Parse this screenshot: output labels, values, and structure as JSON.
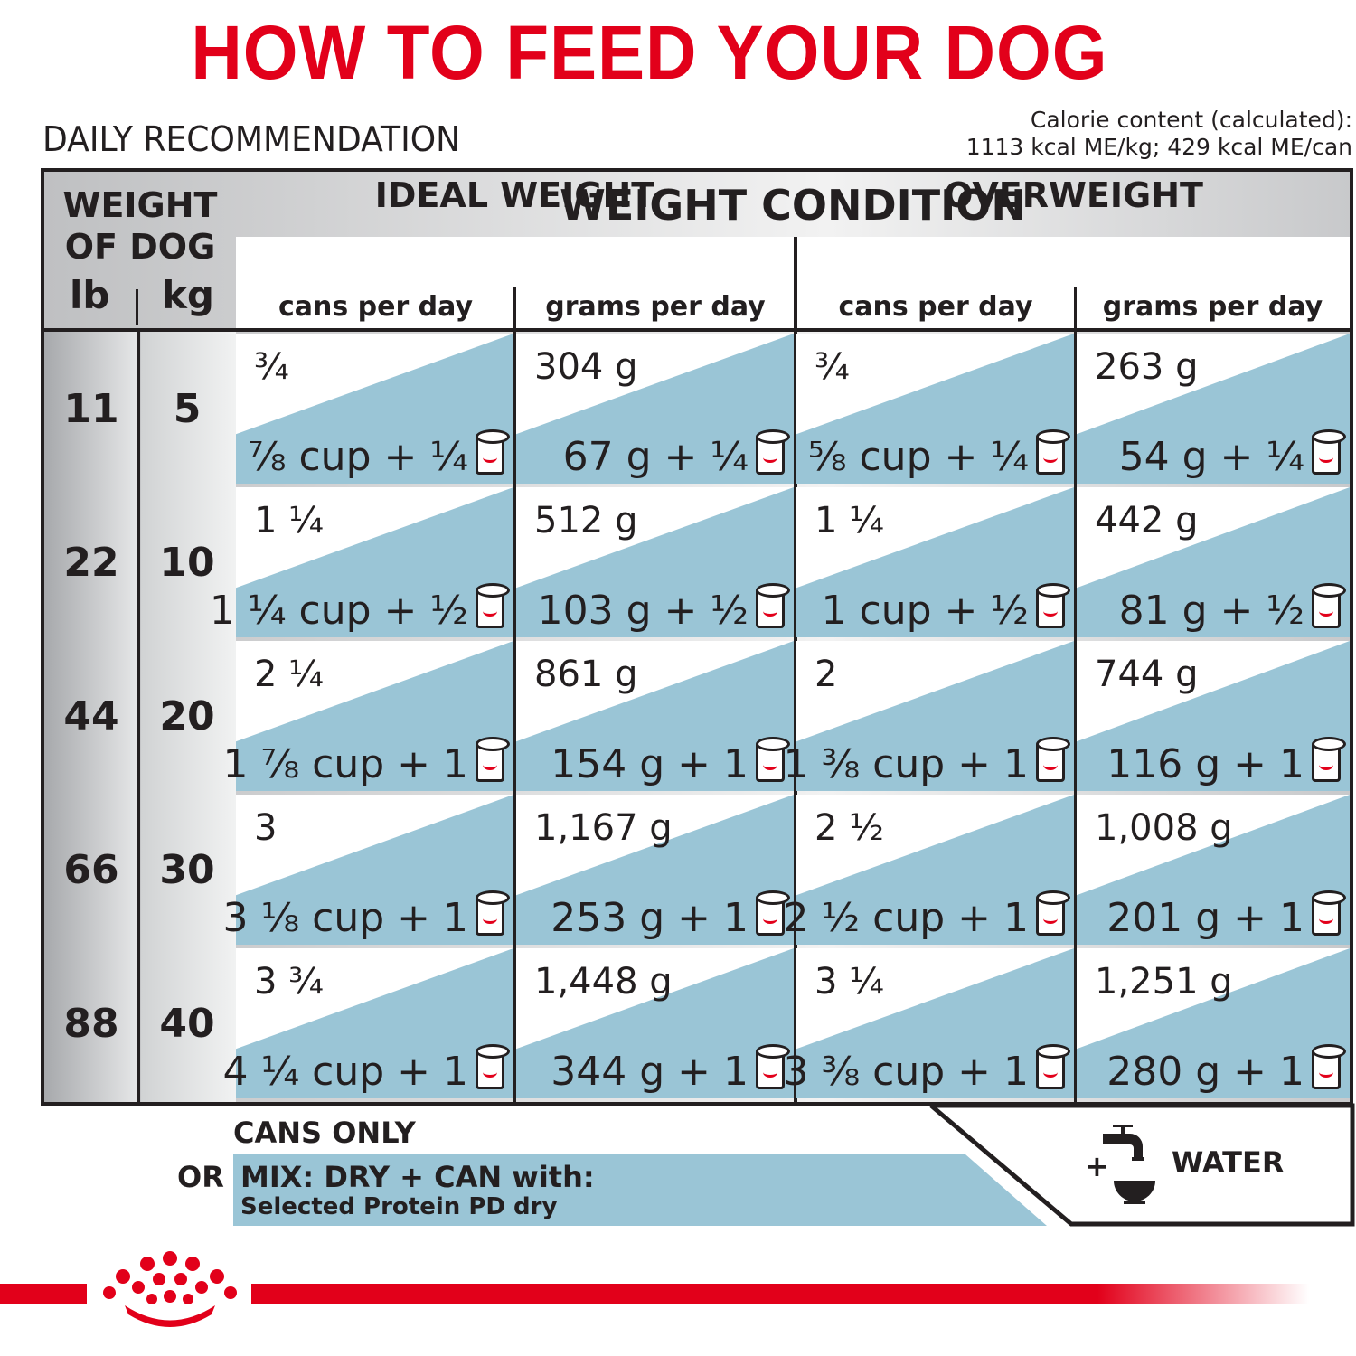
{
  "title": "HOW TO FEED YOUR DOG",
  "daily": "DAILY RECOMMENDATION",
  "calorie": {
    "line1": "Calorie content (calculated):",
    "line2": "1113 kcal ME/kg; 429 kcal ME/can"
  },
  "table": {
    "weight_header": "WEIGHT OF DOG",
    "lb": "lb",
    "kg": "kg",
    "condition_header": "WEIGHT CONDITION",
    "groups": [
      {
        "label": "IDEAL WEIGHT"
      },
      {
        "label": "OVERWEIGHT"
      }
    ],
    "columns": [
      "cans per day",
      "grams per day",
      "cans per day",
      "grams per day"
    ],
    "rows": [
      {
        "lb": "11",
        "kg": "5",
        "cells": [
          {
            "top": "¾",
            "bottom": "⅞ cup + ¼"
          },
          {
            "top": "304 g",
            "bottom": "67 g + ¼"
          },
          {
            "top": "¾",
            "bottom": "⅝ cup + ¼"
          },
          {
            "top": "263 g",
            "bottom": "54 g + ¼"
          }
        ]
      },
      {
        "lb": "22",
        "kg": "10",
        "cells": [
          {
            "top": "1 ¼",
            "bottom": "1 ¼ cup + ½"
          },
          {
            "top": "512 g",
            "bottom": "103 g + ½"
          },
          {
            "top": "1 ¼",
            "bottom": "1 cup + ½"
          },
          {
            "top": "442 g",
            "bottom": "81 g + ½"
          }
        ]
      },
      {
        "lb": "44",
        "kg": "20",
        "cells": [
          {
            "top": "2 ¼",
            "bottom": "1 ⅞ cup + 1"
          },
          {
            "top": "861 g",
            "bottom": "154 g + 1"
          },
          {
            "top": "2",
            "bottom": "1 ⅜ cup + 1"
          },
          {
            "top": "744 g",
            "bottom": "116 g + 1"
          }
        ]
      },
      {
        "lb": "66",
        "kg": "30",
        "cells": [
          {
            "top": "3",
            "bottom": "3 ⅛ cup + 1"
          },
          {
            "top": "1,167 g",
            "bottom": "253 g + 1"
          },
          {
            "top": "2 ½",
            "bottom": "2 ½ cup + 1"
          },
          {
            "top": "1,008 g",
            "bottom": "201 g + 1"
          }
        ]
      },
      {
        "lb": "88",
        "kg": "40",
        "cells": [
          {
            "top": "3 ¾",
            "bottom": "4 ¼ cup + 1"
          },
          {
            "top": "1,448 g",
            "bottom": "344 g + 1"
          },
          {
            "top": "3 ¼",
            "bottom": "3 ⅜ cup + 1"
          },
          {
            "top": "1,251 g",
            "bottom": "280 g + 1"
          }
        ]
      }
    ]
  },
  "legend": {
    "cans_only": "CANS ONLY",
    "or": "OR",
    "mix": "MIX: DRY + CAN with:",
    "mix_product": "Selected Protein PD dry",
    "plus": "+",
    "water": "WATER"
  },
  "colors": {
    "brand_red": "#e2001a",
    "band_blue": "#9ac5d6"
  },
  "icons": {
    "can": "can-icon",
    "water": "water-tap-bowl-icon",
    "logo": "crown-logo"
  }
}
